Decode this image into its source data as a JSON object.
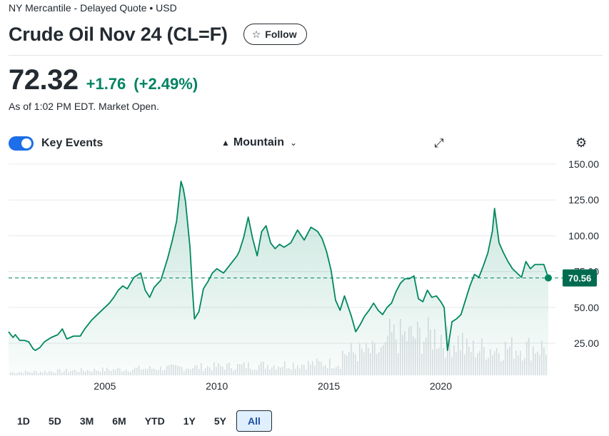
{
  "header": {
    "exchange": "NY Mercantile - Delayed Quote • USD",
    "title": "Crude Oil Nov 24 (CL=F)",
    "follow_label": "Follow",
    "follow_icon": "star-icon"
  },
  "quote": {
    "price": "72.32",
    "change": "+1.76",
    "change_pct": "(+2.49%)",
    "as_of": "As of 1:02 PM EDT. Market Open.",
    "up_color": "#008463"
  },
  "toolbar": {
    "key_events_label": "Key Events",
    "key_events_on": true,
    "chart_type_label": "Mountain",
    "chart_type_icon": "mountain-icon",
    "expand_icon": "expand-icon",
    "settings_icon": "gear-icon"
  },
  "ranges": {
    "items": [
      "1D",
      "5D",
      "3M",
      "6M",
      "YTD",
      "1Y",
      "5Y",
      "All"
    ],
    "selected": "All"
  },
  "chart_data": {
    "type": "area",
    "title": "Crude Oil Nov 24 (CL=F)",
    "xlabel": "",
    "ylabel": "",
    "xlim": [
      2000.7,
      2024.8
    ],
    "ylim": [
      0,
      150
    ],
    "y_ticks": [
      150,
      125,
      100,
      75,
      50,
      25
    ],
    "y_tick_labels": [
      "150.00",
      "125.00",
      "100.00",
      "75.00",
      "50.00",
      "25.00"
    ],
    "x_ticks": [
      2005,
      2010,
      2015,
      2020
    ],
    "x_tick_labels": [
      "2005",
      "2010",
      "2015",
      "2020"
    ],
    "reference_line": {
      "value": 70.56,
      "label": "70.56",
      "style": "dashed"
    },
    "line_color": "#00875f",
    "grid": true,
    "x": [
      2000.7,
      2000.9,
      2001.0,
      2001.2,
      2001.4,
      2001.6,
      2001.8,
      2001.9,
      2002.1,
      2002.3,
      2002.6,
      2002.9,
      2003.1,
      2003.3,
      2003.6,
      2003.9,
      2004.1,
      2004.4,
      2004.6,
      2004.8,
      2005.0,
      2005.2,
      2005.4,
      2005.6,
      2005.8,
      2006.0,
      2006.3,
      2006.6,
      2006.8,
      2007.0,
      2007.2,
      2007.5,
      2007.8,
      2008.0,
      2008.2,
      2008.4,
      2008.5,
      2008.6,
      2008.8,
      2008.9,
      2009.0,
      2009.2,
      2009.4,
      2009.6,
      2009.8,
      2010.0,
      2010.3,
      2010.6,
      2010.9,
      2011.0,
      2011.2,
      2011.4,
      2011.6,
      2011.8,
      2012.0,
      2012.2,
      2012.4,
      2012.6,
      2012.8,
      2013.0,
      2013.3,
      2013.6,
      2013.9,
      2014.2,
      2014.5,
      2014.7,
      2014.9,
      2015.1,
      2015.3,
      2015.5,
      2015.7,
      2016.0,
      2016.2,
      2016.4,
      2016.6,
      2016.8,
      2017.0,
      2017.2,
      2017.4,
      2017.6,
      2017.8,
      2018.0,
      2018.2,
      2018.4,
      2018.6,
      2018.8,
      2019.0,
      2019.2,
      2019.4,
      2019.6,
      2019.8,
      2020.0,
      2020.15,
      2020.3,
      2020.5,
      2020.7,
      2020.9,
      2021.1,
      2021.3,
      2021.5,
      2021.7,
      2021.9,
      2022.1,
      2022.3,
      2022.4,
      2022.6,
      2022.8,
      2023.0,
      2023.2,
      2023.4,
      2023.6,
      2023.8,
      2024.0,
      2024.2,
      2024.4,
      2024.6,
      2024.8
    ],
    "values": [
      33,
      29,
      31,
      27,
      27,
      26,
      21,
      20,
      22,
      26,
      29,
      31,
      35,
      28,
      30,
      30,
      35,
      41,
      44,
      47,
      50,
      53,
      57,
      62,
      65,
      63,
      71,
      74,
      62,
      57,
      64,
      69,
      84,
      96,
      110,
      138,
      133,
      124,
      92,
      65,
      42,
      47,
      63,
      68,
      74,
      77,
      74,
      80,
      86,
      89,
      99,
      113,
      98,
      86,
      103,
      107,
      95,
      91,
      94,
      92,
      95,
      104,
      97,
      106,
      103,
      98,
      89,
      76,
      55,
      48,
      58,
      44,
      33,
      38,
      44,
      48,
      53,
      48,
      45,
      50,
      53,
      61,
      67,
      70,
      70,
      72,
      56,
      54,
      62,
      57,
      58,
      54,
      50,
      20,
      40,
      42,
      45,
      55,
      65,
      73,
      71,
      79,
      88,
      103,
      119,
      95,
      88,
      82,
      77,
      74,
      71,
      82,
      77,
      80,
      80,
      80,
      70.56
    ],
    "volume_note": "light grey volume bars along bottom"
  }
}
